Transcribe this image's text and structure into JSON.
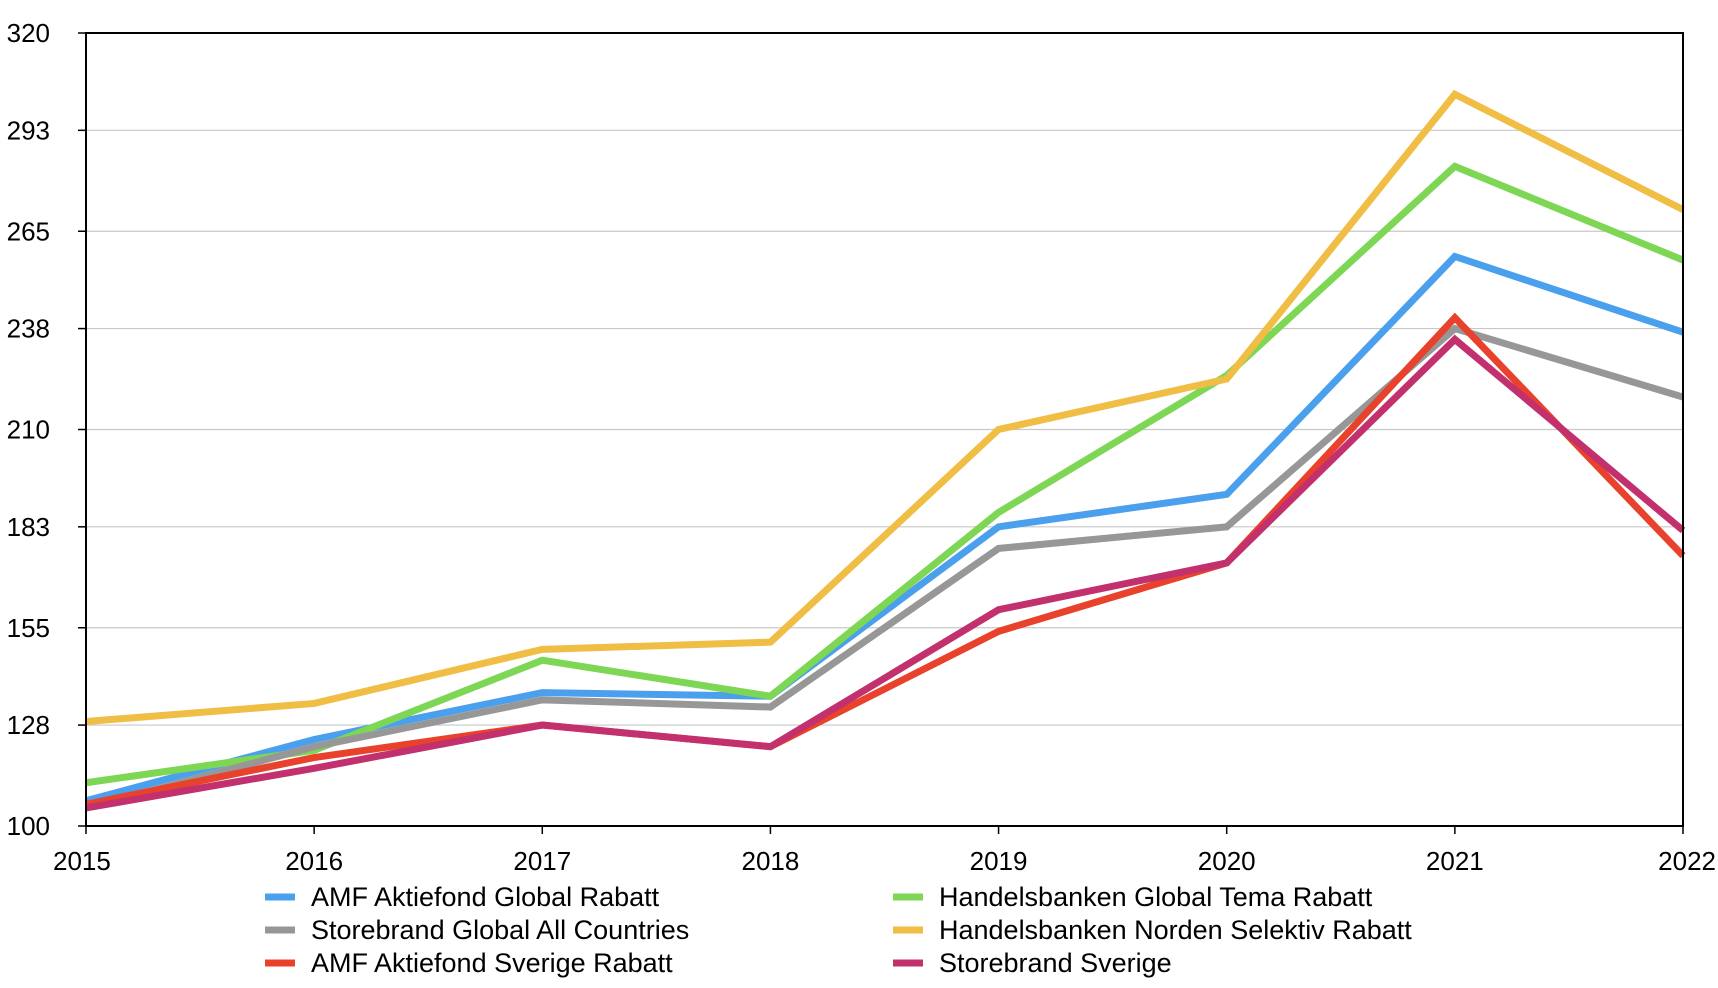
{
  "chart_data": {
    "type": "line",
    "title": "",
    "xlabel": "",
    "ylabel": "",
    "x": [
      "2015",
      "2016",
      "2017",
      "2018",
      "2019",
      "2020",
      "2021",
      "2022"
    ],
    "ylim": [
      100,
      320
    ],
    "yticks": [
      "100",
      "128",
      "155",
      "183",
      "210",
      "238",
      "265",
      "293",
      "320"
    ],
    "grid": true,
    "legend_position": "bottom",
    "series": [
      {
        "name": "AMF Aktiefond Global Rabatt",
        "color": "#4aa0ec",
        "values": [
          107,
          124,
          137,
          136,
          183,
          192,
          258,
          237
        ]
      },
      {
        "name": "Handelsbanken Global Tema Rabatt",
        "color": "#7dd654",
        "values": [
          112,
          121,
          146,
          136,
          187,
          225,
          283,
          257
        ]
      },
      {
        "name": "Storebrand Global All Countries",
        "color": "#979797",
        "values": [
          105,
          122,
          135,
          133,
          177,
          183,
          238,
          219
        ]
      },
      {
        "name": "Handelsbanken Norden Selektiv Rabatt",
        "color": "#f0bd45",
        "values": [
          129,
          134,
          149,
          151,
          210,
          224,
          303,
          271
        ]
      },
      {
        "name": "AMF Aktiefond Sverige Rabatt",
        "color": "#e8412c",
        "values": [
          106,
          119,
          128,
          122,
          154,
          173,
          241,
          175
        ]
      },
      {
        "name": "Storebrand Sverige",
        "color": "#c2306e",
        "values": [
          105,
          116,
          128,
          122,
          160,
          173,
          235,
          182
        ]
      }
    ]
  }
}
